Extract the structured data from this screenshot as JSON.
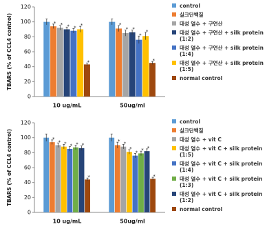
{
  "chart_data": [
    {
      "type": "bar",
      "y_label": "TBARS (% of CCL4 control)",
      "categories": [
        "10 ug/mL",
        "50ug/ml"
      ],
      "ylim": [
        0,
        120
      ],
      "yticks": [
        0,
        20,
        40,
        60,
        80,
        100,
        120
      ],
      "series": [
        {
          "name": "control",
          "color": "#5b9bd5",
          "values": [
            100,
            100
          ],
          "errors": [
            4,
            4
          ]
        },
        {
          "name": "실크단백질",
          "color": "#ed7d31",
          "values": [
            94,
            91
          ],
          "errors": [
            3,
            4
          ],
          "annotations": [
            "*",
            "*"
          ]
        },
        {
          "name": "대성 열수 + 구연산",
          "color": "#a5a5a5",
          "values": [
            92,
            85
          ],
          "errors": [
            3,
            4
          ],
          "annotations": [
            "*",
            "*"
          ]
        },
        {
          "name": "대성 열수 + 구연산 + silk protein (1:2)",
          "color": "#264478",
          "values": [
            90,
            86
          ],
          "errors": [
            3,
            3
          ],
          "annotations": [
            "*",
            "*"
          ]
        },
        {
          "name": "대성 열수 + 구연산 + silk protein (1:4)",
          "color": "#4472c4",
          "values": [
            88,
            76
          ],
          "errors": [
            3,
            5
          ],
          "annotations": [
            "*",
            "*"
          ]
        },
        {
          "name": "대성 열수 + 구연산 + silk protein (1:5)",
          "color": "#ffc000",
          "values": [
            90,
            81
          ],
          "errors": [
            4,
            5
          ],
          "annotations": [
            "*",
            "*"
          ]
        },
        {
          "name": "normal control",
          "color": "#9e480e",
          "values": [
            43,
            45
          ],
          "errors": [
            2,
            2
          ],
          "annotations": [
            "*",
            "*"
          ]
        }
      ]
    },
    {
      "type": "bar",
      "y_label": "TBARS (% of CCL4 control)",
      "categories": [
        "10 ug/mL",
        "50ug/ml"
      ],
      "ylim": [
        0,
        120
      ],
      "yticks": [
        0,
        20,
        40,
        60,
        80,
        100,
        120
      ],
      "series": [
        {
          "name": "control",
          "color": "#5b9bd5",
          "values": [
            100,
            100
          ],
          "errors": [
            5,
            5
          ]
        },
        {
          "name": "실크단백질",
          "color": "#ed7d31",
          "values": [
            94,
            90
          ],
          "errors": [
            3,
            4
          ],
          "annotations": [
            "*",
            "*"
          ]
        },
        {
          "name": "대성 열수 + vit C",
          "color": "#a5a5a5",
          "values": [
            90,
            88
          ],
          "errors": [
            3,
            3
          ],
          "annotations": [
            "*",
            "*"
          ]
        },
        {
          "name": "대성 열수 + vit C + silk protein (1:5)",
          "color": "#ffc000",
          "values": [
            88,
            81
          ],
          "errors": [
            3,
            3
          ],
          "annotations": [
            "*",
            "*"
          ]
        },
        {
          "name": "대성 열수 + vit C + silk protein (1:4)",
          "color": "#4472c4",
          "values": [
            85,
            76
          ],
          "errors": [
            3,
            3
          ],
          "annotations": [
            "*",
            "*"
          ]
        },
        {
          "name": "대성 열수 + vit C + silk protein (1:3)",
          "color": "#70ad47",
          "values": [
            87,
            79
          ],
          "errors": [
            3,
            3
          ],
          "annotations": [
            "*",
            "*"
          ]
        },
        {
          "name": "대성 열수 + vit C + silk protein (1:2)",
          "color": "#264478",
          "values": [
            86,
            82
          ],
          "errors": [
            3,
            3
          ],
          "annotations": [
            "*",
            "*"
          ]
        },
        {
          "name": "normal control",
          "color": "#9e480e",
          "values": [
            44,
            45
          ],
          "errors": [
            2,
            2
          ],
          "annotations": [
            "*",
            "*"
          ]
        }
      ]
    }
  ]
}
